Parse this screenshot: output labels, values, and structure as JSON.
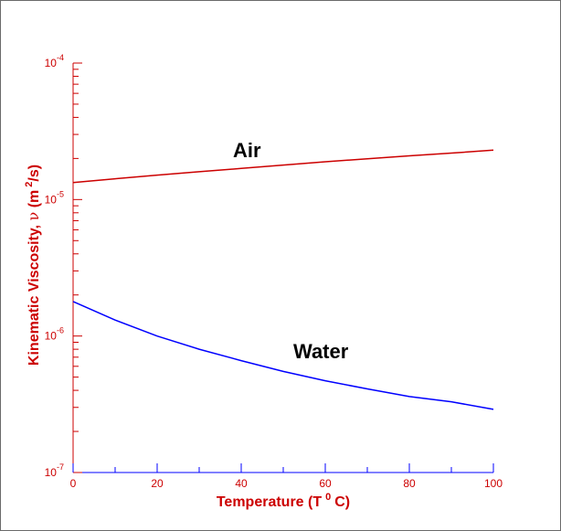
{
  "chart_data": {
    "type": "line",
    "xlabel_text": "Temperature (T",
    "xlabel_sup": "0",
    "xlabel_unit": "C)",
    "ylabel_text": "Kinematic Viscosity, ",
    "ylabel_symbol": "ν",
    "ylabel_unit_open": " (m",
    "ylabel_unit_sup": "2",
    "ylabel_unit_close": "/s)",
    "xlim": [
      0,
      100
    ],
    "ylim": [
      1e-07,
      0.0001
    ],
    "y_scale": "log",
    "x_ticks": [
      "0",
      "20",
      "40",
      "60",
      "80",
      "100"
    ],
    "y_ticks": [
      {
        "base": "10",
        "exp": "-7"
      },
      {
        "base": "10",
        "exp": "-6"
      },
      {
        "base": "10",
        "exp": "-5"
      },
      {
        "base": "10",
        "exp": "-4"
      }
    ],
    "grid": false,
    "colors": {
      "x_axis": "#0000ff",
      "y_axis": "#cc0000",
      "air": "#cc0000",
      "water": "#0000ff"
    },
    "series": [
      {
        "name": "Air",
        "x": [
          0,
          10,
          20,
          30,
          40,
          50,
          60,
          70,
          80,
          90,
          100
        ],
        "y": [
          1.33e-05,
          1.42e-05,
          1.51e-05,
          1.6e-05,
          1.69e-05,
          1.79e-05,
          1.89e-05,
          1.99e-05,
          2.09e-05,
          2.19e-05,
          2.3e-05
        ]
      },
      {
        "name": "Water",
        "x": [
          0,
          10,
          20,
          30,
          40,
          50,
          60,
          70,
          80,
          90,
          100
        ],
        "y": [
          1.79e-06,
          1.31e-06,
          1e-06,
          8e-07,
          6.6e-07,
          5.5e-07,
          4.7e-07,
          4.1e-07,
          3.6e-07,
          3.3e-07,
          2.9e-07
        ]
      }
    ],
    "annotations": [
      "Air",
      "Water"
    ]
  }
}
